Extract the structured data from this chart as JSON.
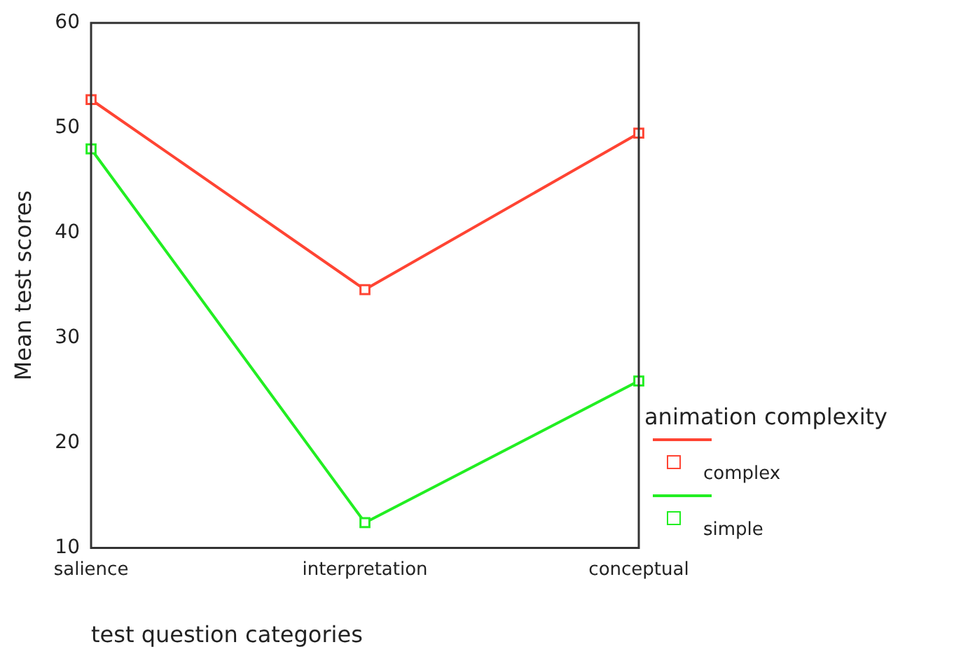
{
  "chart_data": {
    "type": "line",
    "xlabel": "test question categories",
    "ylabel": "Mean test scores",
    "legend_title": "animation complexity",
    "categories": [
      "salience",
      "interpretation",
      "conceptual"
    ],
    "series": [
      {
        "name": "complex",
        "color": "#ff4433",
        "values": [
          52.7,
          34.6,
          49.5
        ]
      },
      {
        "name": "simple",
        "color": "#22ee22",
        "values": [
          48.0,
          12.4,
          25.9
        ]
      }
    ],
    "ylim": [
      10,
      60
    ],
    "yticks": [
      10,
      20,
      30,
      40,
      50,
      60
    ],
    "grid": false,
    "legend": "right",
    "marker": "square",
    "line_style": "solid"
  }
}
